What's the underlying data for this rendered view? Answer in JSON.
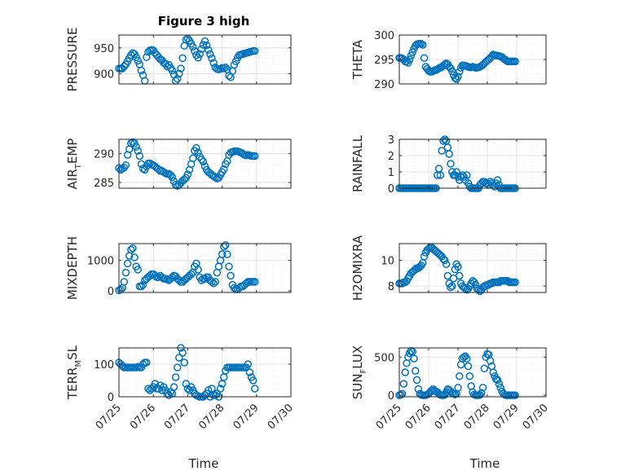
{
  "figure_title": "Figure 3 high",
  "marker_color": "#0072BD",
  "chart_data": [
    {
      "type": "scatter",
      "ylabel": "PRESSURE",
      "ylim": [
        880,
        975
      ],
      "yticks": [
        900,
        950
      ],
      "xlim": [
        0,
        5
      ],
      "grid": true,
      "x": [
        0.0,
        0.05,
        0.1,
        0.15,
        0.2,
        0.25,
        0.3,
        0.35,
        0.4,
        0.45,
        0.5,
        0.55,
        0.6,
        0.65,
        0.7,
        0.75,
        0.8,
        0.85,
        0.9,
        0.95,
        1.0,
        1.05,
        1.1,
        1.15,
        1.2,
        1.25,
        1.3,
        1.35,
        1.4,
        1.45,
        1.5,
        1.55,
        1.6,
        1.65,
        1.7,
        1.75,
        1.8,
        1.85,
        1.9,
        1.95,
        2.0,
        2.05,
        2.1,
        2.15,
        2.2,
        2.25,
        2.3,
        2.35,
        2.4,
        2.45,
        2.5,
        2.55,
        2.6,
        2.65,
        2.7,
        2.75,
        2.8,
        2.85,
        2.9,
        2.95,
        3.0,
        3.05,
        3.1,
        3.15,
        3.2,
        3.25,
        3.3,
        3.35,
        3.4,
        3.45,
        3.5,
        3.55,
        3.6,
        3.65,
        3.7,
        3.75,
        3.8,
        3.85,
        3.9,
        3.95
      ],
      "y": [
        910,
        910,
        910,
        914,
        918,
        924,
        930,
        936,
        940,
        938,
        932,
        925,
        918,
        906,
        897,
        886,
        932,
        942,
        945,
        946,
        945,
        940,
        936,
        932,
        928,
        926,
        921,
        919,
        914,
        917,
        911,
        906,
        898,
        886,
        890,
        900,
        910,
        930,
        954,
        966,
        968,
        964,
        958,
        952,
        944,
        936,
        931,
        938,
        948,
        956,
        963,
        955,
        946,
        938,
        930,
        921,
        912,
        909,
        908,
        909,
        911,
        910,
        912,
        908,
        896,
        893,
        905,
        917,
        924,
        931,
        936,
        937,
        938,
        939,
        940,
        941,
        942,
        943,
        944,
        944
      ]
    },
    {
      "type": "scatter",
      "ylabel": "THETA",
      "ylim": [
        290,
        300
      ],
      "yticks": [
        290,
        295,
        300
      ],
      "xlim": [
        0,
        5
      ],
      "grid": true,
      "x": [
        0.0,
        0.05,
        0.1,
        0.15,
        0.2,
        0.25,
        0.3,
        0.35,
        0.4,
        0.45,
        0.5,
        0.55,
        0.6,
        0.65,
        0.7,
        0.75,
        0.8,
        0.85,
        0.9,
        0.95,
        1.0,
        1.05,
        1.1,
        1.15,
        1.2,
        1.25,
        1.3,
        1.35,
        1.4,
        1.45,
        1.5,
        1.55,
        1.6,
        1.65,
        1.7,
        1.75,
        1.8,
        1.85,
        1.9,
        1.95,
        2.0,
        2.05,
        2.1,
        2.15,
        2.2,
        2.25,
        2.3,
        2.35,
        2.4,
        2.45,
        2.5,
        2.55,
        2.6,
        2.65,
        2.7,
        2.75,
        2.8,
        2.85,
        2.9,
        2.95,
        3.0,
        3.05,
        3.1,
        3.15,
        3.2,
        3.25,
        3.3,
        3.35,
        3.4,
        3.45,
        3.5,
        3.55,
        3.6,
        3.65,
        3.7,
        3.75,
        3.8,
        3.85,
        3.9,
        3.95
      ],
      "y": [
        295.3,
        295.3,
        295.2,
        295.0,
        294.6,
        294.6,
        294.3,
        295.0,
        295.8,
        296.5,
        297.2,
        297.8,
        298.1,
        298.2,
        298.2,
        298.2,
        298.0,
        295.3,
        293.5,
        293.1,
        292.7,
        292.5,
        292.5,
        292.6,
        292.8,
        292.8,
        293.0,
        293.2,
        293.3,
        293.5,
        293.7,
        294.0,
        294.2,
        294.0,
        293.5,
        293.2,
        292.6,
        291.8,
        291.2,
        291.0,
        291.5,
        292.5,
        293.3,
        293.8,
        293.8,
        293.7,
        293.6,
        293.5,
        293.4,
        293.4,
        293.5,
        293.4,
        293.3,
        293.3,
        293.4,
        293.5,
        293.7,
        293.9,
        294.2,
        294.5,
        294.8,
        295.0,
        295.3,
        295.6,
        296.0,
        295.9,
        295.8,
        295.8,
        295.7,
        295.6,
        295.5,
        295.2,
        295.0,
        294.8,
        294.6,
        294.6,
        294.6,
        294.6,
        294.6,
        294.6
      ]
    },
    {
      "type": "scatter",
      "ylabel": "AIR_TEMP",
      "ylim": [
        284,
        292.5
      ],
      "yticks": [
        285,
        290
      ],
      "xlim": [
        0,
        5
      ],
      "grid": true,
      "x": [
        0.0,
        0.05,
        0.1,
        0.15,
        0.2,
        0.25,
        0.3,
        0.35,
        0.4,
        0.45,
        0.5,
        0.55,
        0.6,
        0.65,
        0.7,
        0.75,
        0.8,
        0.85,
        0.9,
        0.95,
        1.0,
        1.05,
        1.1,
        1.15,
        1.2,
        1.25,
        1.3,
        1.35,
        1.4,
        1.45,
        1.5,
        1.55,
        1.6,
        1.65,
        1.7,
        1.75,
        1.8,
        1.85,
        1.9,
        1.95,
        2.0,
        2.05,
        2.1,
        2.15,
        2.2,
        2.25,
        2.3,
        2.35,
        2.4,
        2.45,
        2.5,
        2.55,
        2.6,
        2.65,
        2.7,
        2.75,
        2.8,
        2.85,
        2.9,
        2.95,
        3.0,
        3.05,
        3.1,
        3.15,
        3.2,
        3.25,
        3.3,
        3.35,
        3.4,
        3.45,
        3.5,
        3.55,
        3.6,
        3.65,
        3.7,
        3.75,
        3.8,
        3.85,
        3.9,
        3.95
      ],
      "y": [
        287.5,
        287.2,
        287.4,
        287.6,
        288.0,
        289.8,
        290.8,
        291.8,
        292.0,
        291.8,
        291.2,
        290.5,
        289.6,
        288.2,
        287.4,
        287.2,
        287.8,
        288.3,
        288.3,
        288.1,
        288.0,
        287.8,
        287.5,
        287.3,
        287.0,
        287.0,
        286.8,
        286.6,
        286.5,
        286.5,
        286.3,
        285.9,
        285.2,
        284.6,
        284.4,
        284.6,
        284.9,
        285.3,
        285.5,
        285.8,
        286.4,
        287.2,
        288.2,
        289.2,
        290.5,
        291.0,
        290.2,
        289.5,
        289.0,
        288.6,
        287.8,
        287.2,
        286.8,
        286.6,
        286.3,
        286.1,
        285.9,
        285.7,
        285.8,
        286.3,
        286.8,
        287.3,
        288.2,
        288.7,
        289.8,
        290.2,
        290.3,
        290.4,
        290.4,
        290.4,
        290.3,
        290.2,
        290.0,
        289.8,
        289.7,
        289.8,
        289.7,
        289.6,
        289.6,
        289.6
      ]
    },
    {
      "type": "scatter",
      "ylabel": "RAINFALL",
      "ylim": [
        0,
        3
      ],
      "yticks": [
        0,
        1,
        2,
        3
      ],
      "xlim": [
        0,
        5
      ],
      "grid": true,
      "x": [
        0.0,
        0.05,
        0.1,
        0.15,
        0.2,
        0.25,
        0.3,
        0.35,
        0.4,
        0.45,
        0.5,
        0.55,
        0.6,
        0.65,
        0.7,
        0.75,
        0.8,
        0.85,
        0.9,
        0.95,
        1.0,
        1.05,
        1.1,
        1.15,
        1.2,
        1.25,
        1.3,
        1.35,
        1.4,
        1.45,
        1.5,
        1.55,
        1.6,
        1.65,
        1.7,
        1.75,
        1.8,
        1.85,
        1.9,
        1.95,
        2.0,
        2.05,
        2.1,
        2.15,
        2.2,
        2.25,
        2.3,
        2.35,
        2.4,
        2.45,
        2.5,
        2.55,
        2.6,
        2.65,
        2.7,
        2.75,
        2.8,
        2.85,
        2.9,
        2.95,
        3.0,
        3.05,
        3.1,
        3.15,
        3.2,
        3.25,
        3.3,
        3.35,
        3.4,
        3.45,
        3.5,
        3.55,
        3.6,
        3.65,
        3.7,
        3.75,
        3.8,
        3.85,
        3.9,
        3.95
      ],
      "y": [
        0,
        0,
        0,
        0,
        0,
        0,
        0,
        0,
        0,
        0,
        0,
        0,
        0,
        0,
        0,
        0,
        0,
        0,
        0,
        0,
        0,
        0,
        0,
        0,
        0,
        0,
        0.8,
        1.2,
        0.8,
        2.3,
        2.9,
        3.0,
        2.9,
        2.5,
        2.1,
        1.5,
        1.0,
        0.8,
        0.8,
        1.0,
        0.7,
        0.5,
        0.7,
        0.8,
        0.7,
        0.5,
        0.8,
        0.3,
        0.1,
        0,
        0,
        0,
        0,
        0,
        0,
        0.2,
        0.3,
        0.4,
        0.4,
        0.3,
        0.3,
        0.2,
        0.4,
        0.3,
        0.2,
        0.1,
        0.3,
        0.5,
        0.2,
        0,
        0,
        0,
        0,
        0,
        0,
        0,
        0,
        0,
        0,
        0
      ]
    },
    {
      "type": "scatter",
      "ylabel": "MIXDEPTH",
      "ylim": [
        -50,
        1550
      ],
      "yticks": [
        0,
        1000
      ],
      "xlim": [
        0,
        5
      ],
      "grid": true,
      "x": [
        0.0,
        0.05,
        0.1,
        0.15,
        0.2,
        0.25,
        0.3,
        0.35,
        0.4,
        0.45,
        0.5,
        0.55,
        0.6,
        0.65,
        0.7,
        0.75,
        0.8,
        0.85,
        0.9,
        0.95,
        1.0,
        1.05,
        1.1,
        1.15,
        1.2,
        1.25,
        1.3,
        1.35,
        1.4,
        1.45,
        1.5,
        1.55,
        1.6,
        1.65,
        1.7,
        1.75,
        1.8,
        1.85,
        1.9,
        1.95,
        2.0,
        2.05,
        2.1,
        2.15,
        2.2,
        2.25,
        2.3,
        2.35,
        2.4,
        2.45,
        2.5,
        2.55,
        2.6,
        2.65,
        2.7,
        2.75,
        2.8,
        2.85,
        2.9,
        2.95,
        3.0,
        3.05,
        3.1,
        3.15,
        3.2,
        3.25,
        3.3,
        3.35,
        3.4,
        3.45,
        3.5,
        3.55,
        3.6,
        3.65,
        3.7,
        3.75,
        3.8,
        3.85,
        3.9,
        3.95
      ],
      "y": [
        20,
        50,
        100,
        300,
        600,
        900,
        1150,
        1350,
        1400,
        1100,
        800,
        700,
        150,
        150,
        200,
        350,
        400,
        450,
        500,
        550,
        550,
        500,
        450,
        450,
        500,
        450,
        400,
        400,
        380,
        350,
        400,
        450,
        500,
        480,
        400,
        350,
        300,
        300,
        350,
        400,
        450,
        500,
        550,
        600,
        800,
        900,
        700,
        450,
        350,
        400,
        400,
        450,
        450,
        350,
        300,
        250,
        300,
        600,
        800,
        1000,
        1200,
        1450,
        1500,
        1200,
        800,
        500,
        200,
        100,
        60,
        50,
        100,
        150,
        150,
        200,
        250,
        300,
        300,
        300,
        300,
        300
      ]
    },
    {
      "type": "scatter",
      "ylabel": "H2OMIXRA",
      "ylim": [
        7.5,
        11.3
      ],
      "yticks": [
        8,
        10
      ],
      "xlim": [
        0,
        5
      ],
      "grid": true,
      "x": [
        0.0,
        0.05,
        0.1,
        0.15,
        0.2,
        0.25,
        0.3,
        0.35,
        0.4,
        0.45,
        0.5,
        0.55,
        0.6,
        0.65,
        0.7,
        0.75,
        0.8,
        0.85,
        0.9,
        0.95,
        1.0,
        1.05,
        1.1,
        1.15,
        1.2,
        1.25,
        1.3,
        1.35,
        1.4,
        1.45,
        1.5,
        1.55,
        1.6,
        1.65,
        1.7,
        1.75,
        1.8,
        1.85,
        1.9,
        1.95,
        2.0,
        2.05,
        2.1,
        2.15,
        2.2,
        2.25,
        2.3,
        2.35,
        2.4,
        2.45,
        2.5,
        2.55,
        2.6,
        2.65,
        2.7,
        2.75,
        2.8,
        2.85,
        2.9,
        2.95,
        3.0,
        3.05,
        3.1,
        3.15,
        3.2,
        3.25,
        3.3,
        3.35,
        3.4,
        3.45,
        3.5,
        3.55,
        3.6,
        3.65,
        3.7,
        3.75,
        3.8,
        3.85,
        3.9,
        3.95
      ],
      "y": [
        8.2,
        8.2,
        8.2,
        8.3,
        8.3,
        8.4,
        8.6,
        8.8,
        9.0,
        9.1,
        9.2,
        9.3,
        9.4,
        9.4,
        9.5,
        9.6,
        9.8,
        10.3,
        10.6,
        10.8,
        10.9,
        11.0,
        11.0,
        10.9,
        10.8,
        10.7,
        10.6,
        10.5,
        10.4,
        10.3,
        10.1,
        10.0,
        9.7,
        8.8,
        8.2,
        7.9,
        8.0,
        8.6,
        9.3,
        9.7,
        9.5,
        8.8,
        8.2,
        8.0,
        7.9,
        7.8,
        7.7,
        7.8,
        8.0,
        8.2,
        8.4,
        8.3,
        8.1,
        7.8,
        7.7,
        7.6,
        7.7,
        7.9,
        8.0,
        8.0,
        8.1,
        8.1,
        8.2,
        8.2,
        8.3,
        8.3,
        8.3,
        8.3,
        8.3,
        8.4,
        8.4,
        8.4,
        8.4,
        8.4,
        8.4,
        8.3,
        8.3,
        8.3,
        8.3,
        8.3
      ]
    },
    {
      "type": "scatter",
      "ylabel": "TERR_MSL",
      "ylim": [
        0,
        150
      ],
      "yticks": [
        0,
        100
      ],
      "xlim": [
        0,
        5
      ],
      "grid": true,
      "x": [
        0.0,
        0.05,
        0.1,
        0.15,
        0.2,
        0.25,
        0.3,
        0.35,
        0.4,
        0.45,
        0.5,
        0.55,
        0.6,
        0.65,
        0.7,
        0.75,
        0.8,
        0.85,
        0.9,
        0.95,
        1.0,
        1.05,
        1.1,
        1.15,
        1.2,
        1.25,
        1.3,
        1.35,
        1.4,
        1.45,
        1.5,
        1.55,
        1.6,
        1.65,
        1.7,
        1.75,
        1.8,
        1.85,
        1.9,
        1.95,
        2.0,
        2.05,
        2.1,
        2.15,
        2.2,
        2.25,
        2.3,
        2.35,
        2.4,
        2.45,
        2.5,
        2.55,
        2.6,
        2.65,
        2.7,
        2.75,
        2.8,
        2.85,
        2.9,
        2.95,
        3.0,
        3.05,
        3.1,
        3.15,
        3.2,
        3.25,
        3.3,
        3.35,
        3.4,
        3.45,
        3.5,
        3.55,
        3.6,
        3.65,
        3.7,
        3.75,
        3.8,
        3.85,
        3.9,
        3.95
      ],
      "y": [
        105,
        100,
        95,
        90,
        90,
        90,
        90,
        90,
        90,
        90,
        90,
        92,
        90,
        90,
        100,
        105,
        105,
        25,
        20,
        25,
        30,
        40,
        25,
        25,
        35,
        20,
        30,
        20,
        10,
        5,
        15,
        10,
        30,
        60,
        90,
        120,
        150,
        135,
        105,
        40,
        25,
        20,
        30,
        20,
        10,
        5,
        2,
        0,
        0,
        0,
        5,
        10,
        20,
        0,
        25,
        5,
        5,
        10,
        0,
        25,
        40,
        60,
        80,
        90,
        90,
        90,
        90,
        90,
        90,
        90,
        90,
        90,
        90,
        90,
        90,
        100,
        75,
        60,
        50,
        25
      ]
    },
    {
      "type": "scatter",
      "ylabel": "SUN_FLUX",
      "ylim": [
        -20,
        620
      ],
      "yticks": [
        0,
        500
      ],
      "xlim": [
        0,
        5
      ],
      "grid": true,
      "x": [
        0.0,
        0.05,
        0.1,
        0.15,
        0.2,
        0.25,
        0.3,
        0.35,
        0.4,
        0.45,
        0.5,
        0.55,
        0.6,
        0.65,
        0.7,
        0.75,
        0.8,
        0.85,
        0.9,
        0.95,
        1.0,
        1.05,
        1.1,
        1.15,
        1.2,
        1.25,
        1.3,
        1.35,
        1.4,
        1.45,
        1.5,
        1.55,
        1.6,
        1.65,
        1.7,
        1.75,
        1.8,
        1.85,
        1.9,
        1.95,
        2.0,
        2.05,
        2.1,
        2.15,
        2.2,
        2.25,
        2.3,
        2.35,
        2.4,
        2.45,
        2.5,
        2.55,
        2.6,
        2.65,
        2.7,
        2.75,
        2.8,
        2.85,
        2.9,
        2.95,
        3.0,
        3.05,
        3.1,
        3.15,
        3.2,
        3.25,
        3.3,
        3.35,
        3.4,
        3.45,
        3.5,
        3.55,
        3.6,
        3.65,
        3.7,
        3.75,
        3.8,
        3.85,
        3.9,
        3.95
      ],
      "y": [
        0,
        5,
        20,
        150,
        300,
        420,
        500,
        550,
        580,
        570,
        480,
        320,
        200,
        80,
        20,
        5,
        0,
        0,
        0,
        10,
        20,
        40,
        60,
        80,
        60,
        50,
        40,
        20,
        5,
        0,
        0,
        5,
        40,
        80,
        70,
        50,
        30,
        20,
        10,
        20,
        100,
        250,
        400,
        480,
        500,
        510,
        480,
        380,
        250,
        120,
        40,
        10,
        0,
        0,
        0,
        5,
        30,
        100,
        350,
        500,
        540,
        530,
        450,
        380,
        300,
        250,
        210,
        200,
        150,
        100,
        50,
        20,
        5,
        0,
        0,
        0,
        0,
        0,
        0,
        0
      ]
    }
  ],
  "x_tick_labels": [
    "07/25",
    "07/26",
    "07/27",
    "07/28",
    "07/29",
    "07/30"
  ],
  "xlabel": "Time"
}
